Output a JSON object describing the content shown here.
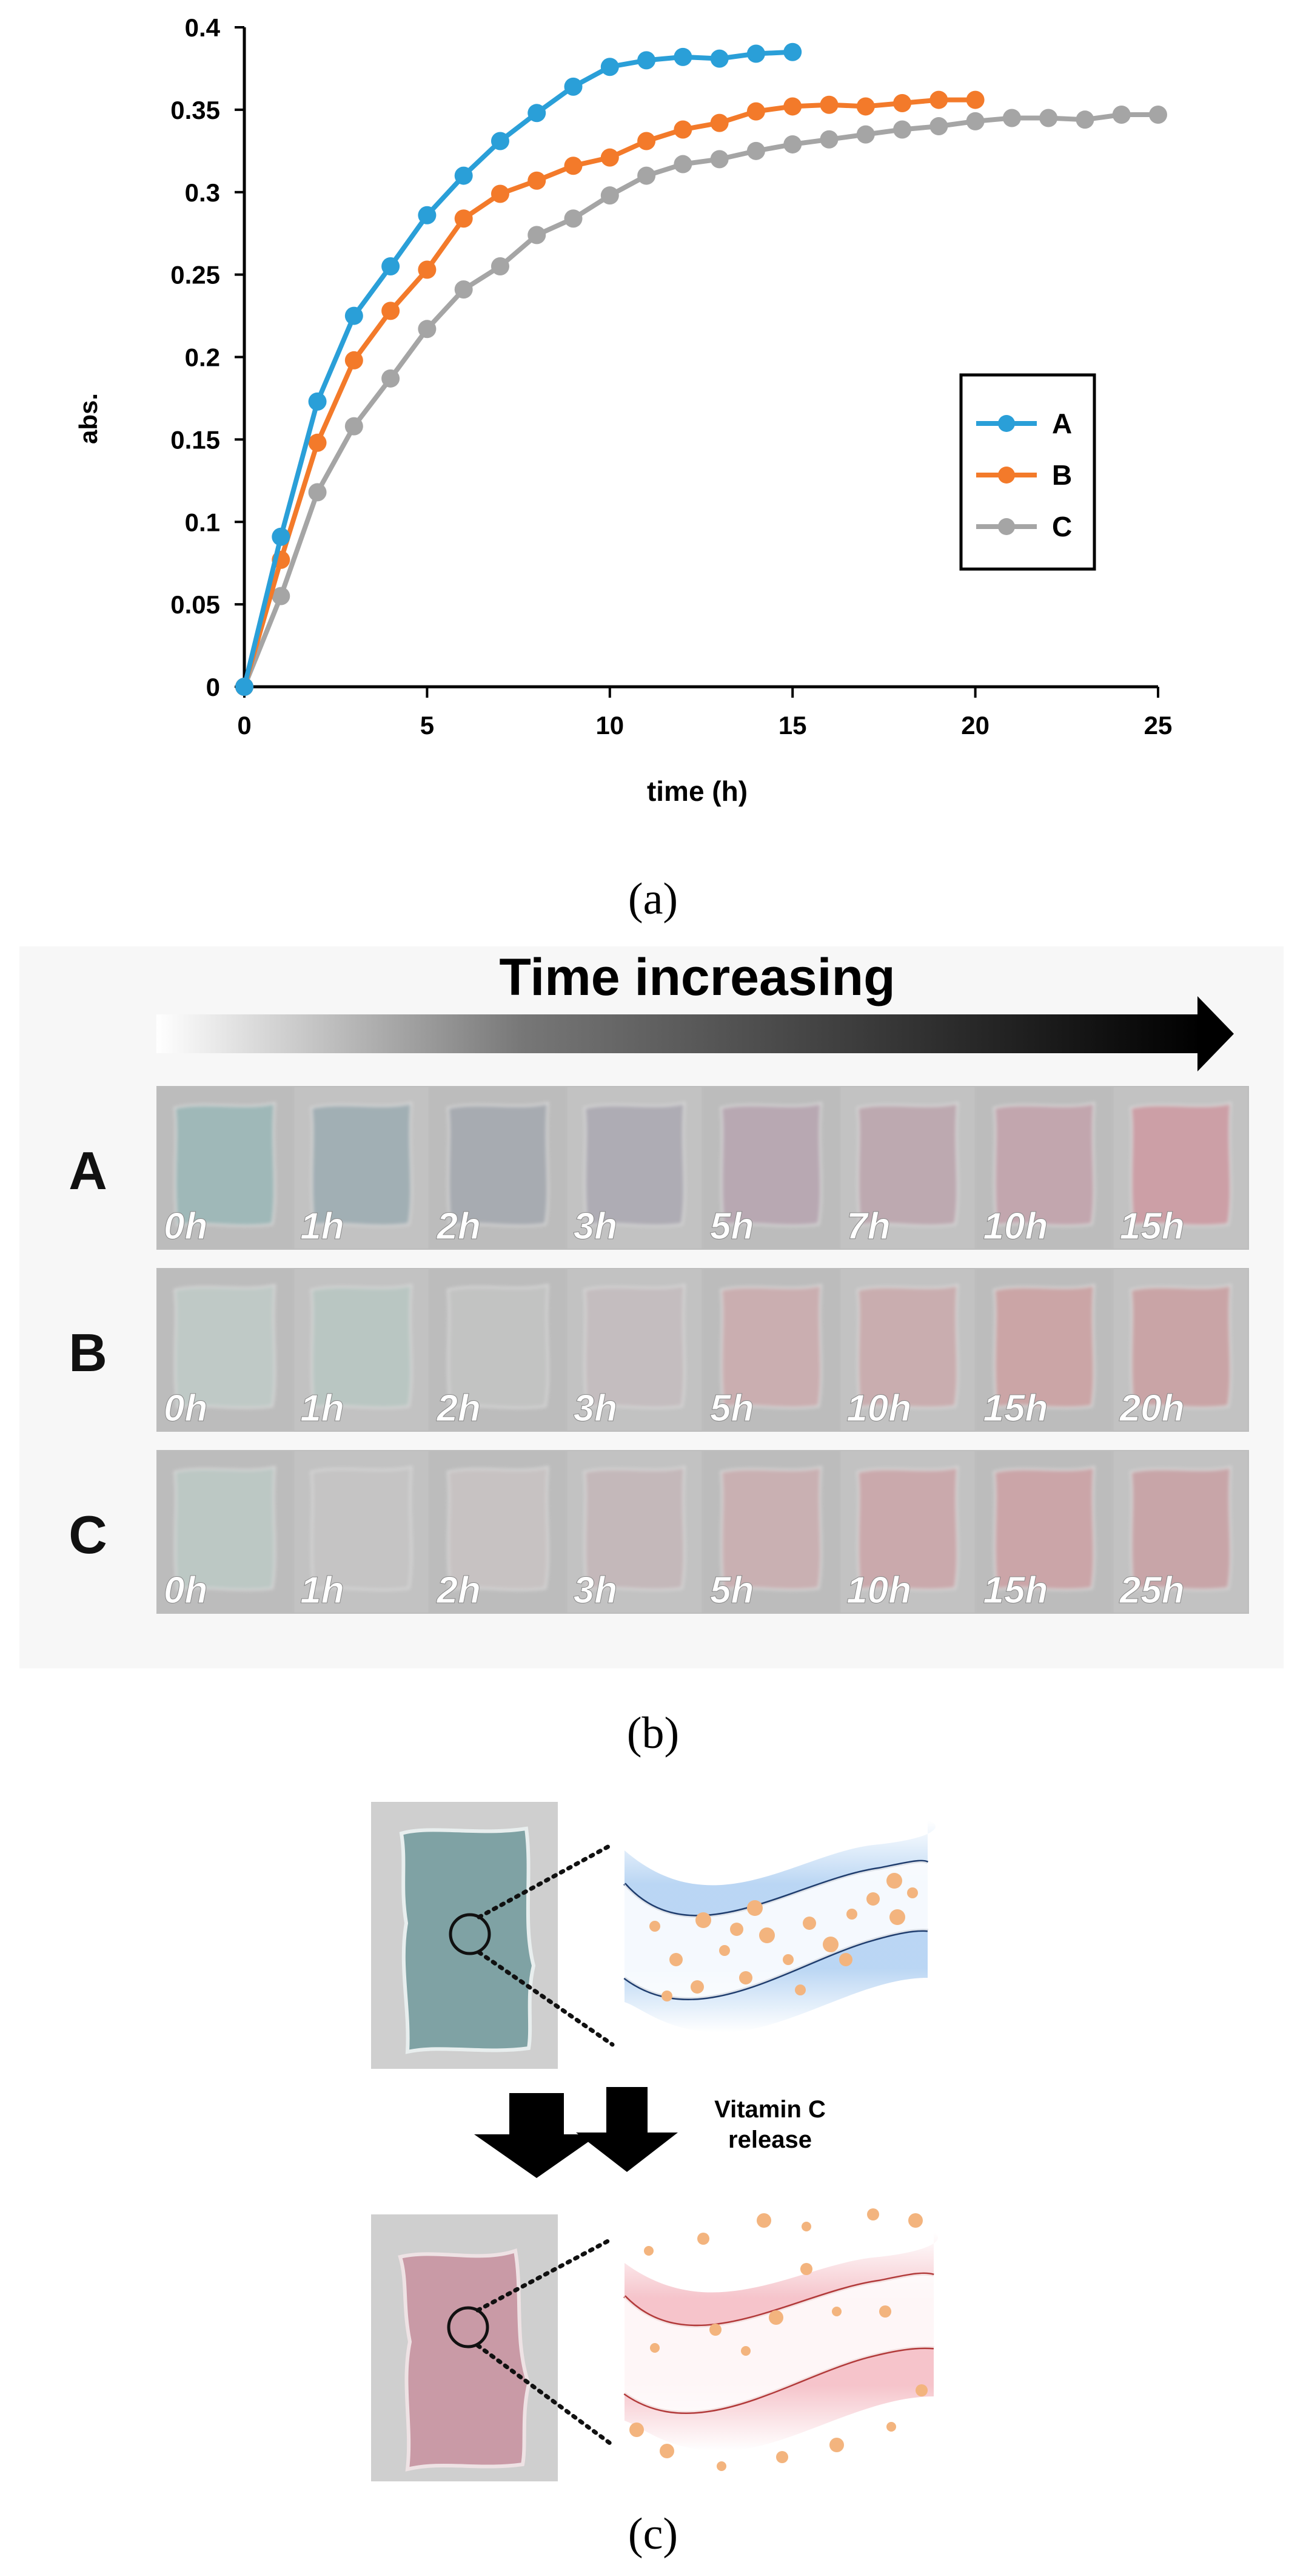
{
  "panels": {
    "a": "(a)",
    "b": "(b)",
    "c": "(c)"
  },
  "chart_data": {
    "type": "line",
    "title": "",
    "xlabel": "time (h)",
    "ylabel": "abs.",
    "xlim": [
      0,
      25
    ],
    "ylim": [
      0,
      0.4
    ],
    "xticks": [
      0,
      5,
      10,
      15,
      20,
      25
    ],
    "yticks": [
      0,
      0.05,
      0.1,
      0.15,
      0.2,
      0.25,
      0.3,
      0.35,
      0.4
    ],
    "ytick_labels": [
      "0",
      "0.05",
      "0.1",
      "0.15",
      "0.2",
      "0.25",
      "0.3",
      "0.35",
      "0.4"
    ],
    "grid": false,
    "legend_position": "right",
    "series": [
      {
        "name": "A",
        "color": "#2a9fd8",
        "x": [
          0,
          1,
          2,
          3,
          4,
          5,
          6,
          7,
          8,
          9,
          10,
          11,
          12,
          13,
          14,
          15
        ],
        "y": [
          0,
          0.091,
          0.173,
          0.225,
          0.255,
          0.286,
          0.31,
          0.331,
          0.348,
          0.364,
          0.376,
          0.38,
          0.382,
          0.381,
          0.384,
          0.385
        ]
      },
      {
        "name": "B",
        "color": "#f37a2a",
        "x": [
          0,
          1,
          2,
          3,
          4,
          5,
          6,
          7,
          8,
          9,
          10,
          11,
          12,
          13,
          14,
          15,
          16,
          17,
          18,
          19,
          20
        ],
        "y": [
          0,
          0.077,
          0.148,
          0.198,
          0.228,
          0.253,
          0.284,
          0.299,
          0.307,
          0.316,
          0.321,
          0.331,
          0.338,
          0.342,
          0.349,
          0.352,
          0.353,
          0.352,
          0.354,
          0.356,
          0.356
        ]
      },
      {
        "name": "C",
        "color": "#a5a5a5",
        "x": [
          0,
          1,
          2,
          3,
          4,
          5,
          6,
          7,
          8,
          9,
          10,
          11,
          12,
          13,
          14,
          15,
          16,
          17,
          18,
          19,
          20,
          21,
          22,
          23,
          24,
          25
        ],
        "y": [
          0,
          0.055,
          0.118,
          0.158,
          0.187,
          0.217,
          0.241,
          0.255,
          0.274,
          0.284,
          0.298,
          0.31,
          0.317,
          0.32,
          0.325,
          0.329,
          0.332,
          0.335,
          0.338,
          0.34,
          0.343,
          0.345,
          0.345,
          0.344,
          0.347,
          0.347
        ]
      }
    ]
  },
  "photo_strip": {
    "title": "Time increasing",
    "rows": [
      {
        "label": "A",
        "times": [
          "0h",
          "1h",
          "2h",
          "3h",
          "5h",
          "7h",
          "10h",
          "15h"
        ],
        "colors": [
          "#9fb8b8",
          "#a1afb4",
          "#a7abb1",
          "#aeacb4",
          "#b8a8b2",
          "#bda9b0",
          "#c2a6ae",
          "#cc9fa6"
        ]
      },
      {
        "label": "B",
        "times": [
          "0h",
          "1h",
          "2h",
          "3h",
          "5h",
          "10h",
          "15h",
          "20h"
        ],
        "colors": [
          "#bfc9c6",
          "#b9c6c2",
          "#c2c3c2",
          "#c4bdbf",
          "#caaeb0",
          "#c9adaf",
          "#cba5a6",
          "#c9a4a6"
        ]
      },
      {
        "label": "C",
        "times": [
          "0h",
          "1h",
          "2h",
          "3h",
          "5h",
          "10h",
          "15h",
          "25h"
        ],
        "colors": [
          "#bcc8c4",
          "#c5c4c4",
          "#c7c2c2",
          "#c4b8ba",
          "#c9b0b2",
          "#caa9ac",
          "#cba5a8",
          "#c8a5a8"
        ]
      }
    ]
  },
  "schematic": {
    "release_label_line1": "Vitamin C",
    "release_label_line2": "release",
    "before_color": "#7fa2a4",
    "after_color": "#c99aa6",
    "particle_color": "#f3b47e"
  }
}
